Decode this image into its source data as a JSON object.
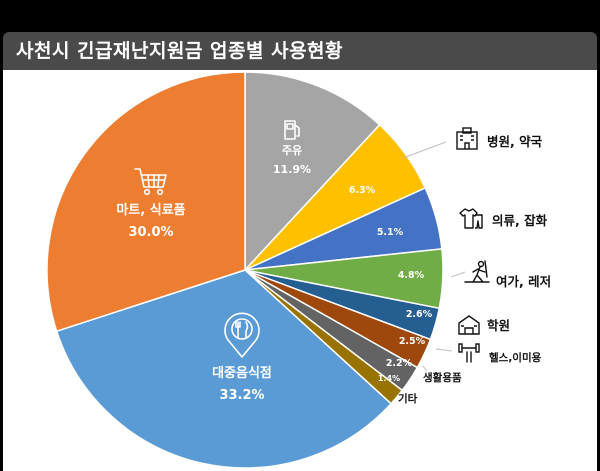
{
  "title": "사천시 긴급재난지원금 업종별 사용현황",
  "chart_data": {
    "type": "pie",
    "start_angle_deg": 0,
    "direction": "clockwise",
    "slices": [
      {
        "label": "주유",
        "value": 11.9,
        "value_label": "11.9%",
        "color": "#a5a5a5",
        "icon": "gas-pump-icon",
        "placement": "inside"
      },
      {
        "label": "병원, 약국",
        "value": 6.3,
        "value_label": "6.3%",
        "color": "#ffc000",
        "icon": "hospital-icon",
        "placement": "outside"
      },
      {
        "label": "의류, 잡화",
        "value": 5.1,
        "value_label": "5.1%",
        "color": "#4472c4",
        "icon": "clothing-icon",
        "placement": "outside"
      },
      {
        "label": "여가, 레저",
        "value": 4.8,
        "value_label": "4.8%",
        "color": "#70ad47",
        "icon": "leisure-icon",
        "placement": "outside"
      },
      {
        "label": "학원",
        "value": 2.6,
        "value_label": "2.6%",
        "color": "#255e91",
        "icon": "academy-icon",
        "placement": "outside"
      },
      {
        "label": "헬스,이미용",
        "value": 2.5,
        "value_label": "2.5%",
        "color": "#9e480e",
        "icon": "fitness-icon",
        "placement": "outside"
      },
      {
        "label": "생활용품",
        "value": 2.2,
        "value_label": "2.2%",
        "color": "#636363",
        "icon": "",
        "placement": "outside"
      },
      {
        "label": "기타",
        "value": 1.4,
        "value_label": "1.4%",
        "color": "#997300",
        "icon": "",
        "placement": "outside"
      },
      {
        "label": "대중음식점",
        "value": 33.2,
        "value_label": "33.2%",
        "color": "#5b9bd5",
        "icon": "restaurant-icon",
        "placement": "inside"
      },
      {
        "label": "마트, 식료품",
        "value": 30.0,
        "value_label": "30.0%",
        "color": "#ed7d31",
        "icon": "cart-icon",
        "placement": "inside"
      }
    ]
  }
}
